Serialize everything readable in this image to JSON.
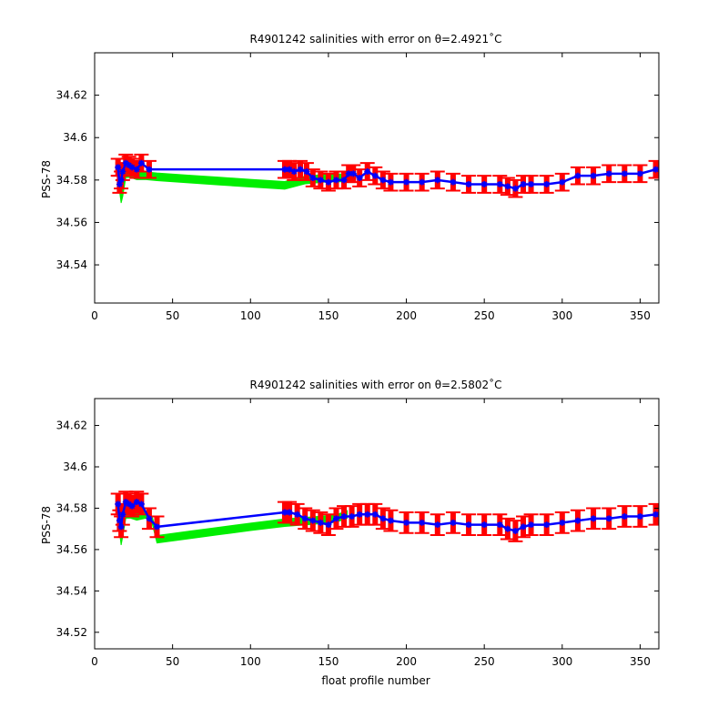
{
  "chart_data": [
    {
      "type": "scatter",
      "title": "R4901242 salinities with error on θ=2.4921˚C",
      "xlabel": "",
      "ylabel": "PSS-78",
      "xlim": [
        0,
        362
      ],
      "ylim": [
        34.522,
        34.64
      ],
      "x_ticks": [
        0,
        50,
        100,
        150,
        200,
        250,
        300,
        350
      ],
      "y_ticks": [
        34.54,
        34.56,
        34.58,
        34.6,
        34.62
      ],
      "grid": false,
      "colors": {
        "error_bars": "#ff0000",
        "mapped": "#00ee00",
        "float": "#0000ff"
      },
      "series": [
        {
          "role": "mapped",
          "x": [
            15,
            17,
            18,
            20,
            23,
            27,
            33,
            40,
            60,
            80,
            100,
            122,
            135,
            150,
            165
          ],
          "y": [
            34.582,
            34.571,
            34.574,
            34.583,
            34.583,
            34.582,
            34.582,
            34.5815,
            34.5805,
            34.5795,
            34.5785,
            34.5775,
            34.58,
            34.581,
            34.581
          ],
          "band": 0.0018
        },
        {
          "role": "float",
          "x": [
            15,
            16,
            17,
            18,
            20,
            22,
            24,
            27,
            30,
            35,
            122,
            125,
            128,
            132,
            136,
            140,
            145,
            150,
            155,
            160,
            163,
            166,
            170,
            175,
            180,
            185,
            190,
            200,
            210,
            220,
            230,
            240,
            250,
            260,
            265,
            270,
            275,
            280,
            290,
            300,
            310,
            320,
            330,
            340,
            350,
            360
          ],
          "y": [
            34.586,
            34.578,
            34.58,
            34.584,
            34.588,
            34.587,
            34.586,
            34.585,
            34.588,
            34.585,
            34.585,
            34.585,
            34.584,
            34.585,
            34.584,
            34.581,
            34.58,
            34.579,
            34.58,
            34.58,
            34.583,
            34.583,
            34.581,
            34.584,
            34.582,
            34.58,
            34.579,
            34.579,
            34.579,
            34.58,
            34.579,
            34.578,
            34.578,
            34.578,
            34.577,
            34.576,
            34.578,
            34.578,
            34.578,
            34.579,
            34.582,
            34.582,
            34.583,
            34.583,
            34.583,
            34.585
          ],
          "error": 0.004
        }
      ]
    },
    {
      "type": "scatter",
      "title": "R4901242 salinities with error on θ=2.5802˚C",
      "xlabel": "float profile number",
      "ylabel": "PSS-78",
      "xlim": [
        0,
        362
      ],
      "ylim": [
        34.512,
        34.633
      ],
      "x_ticks": [
        0,
        50,
        100,
        150,
        200,
        250,
        300,
        350
      ],
      "y_ticks": [
        34.52,
        34.54,
        34.56,
        34.58,
        34.6,
        34.62
      ],
      "grid": false,
      "colors": {
        "error_bars": "#ff0000",
        "mapped": "#00ee00",
        "float": "#0000ff"
      },
      "series": [
        {
          "role": "mapped",
          "x": [
            15,
            17,
            18,
            20,
            23,
            27,
            33,
            37,
            40,
            60,
            80,
            100,
            122,
            140,
            155,
            162
          ],
          "y": [
            34.576,
            34.564,
            34.568,
            34.577,
            34.577,
            34.576,
            34.577,
            34.574,
            34.565,
            34.567,
            34.569,
            34.571,
            34.573,
            34.574,
            34.575,
            34.577
          ],
          "band": 0.0018
        },
        {
          "role": "float",
          "x": [
            15,
            16,
            17,
            18,
            20,
            22,
            24,
            27,
            30,
            35,
            40,
            122,
            125,
            130,
            135,
            140,
            145,
            150,
            155,
            160,
            165,
            170,
            175,
            180,
            185,
            190,
            200,
            210,
            220,
            230,
            240,
            250,
            260,
            265,
            270,
            275,
            280,
            290,
            300,
            310,
            320,
            330,
            340,
            350,
            360
          ],
          "y": [
            34.582,
            34.574,
            34.571,
            34.577,
            34.583,
            34.582,
            34.581,
            34.583,
            34.582,
            34.575,
            34.571,
            34.578,
            34.578,
            34.577,
            34.575,
            34.574,
            34.573,
            34.572,
            34.575,
            34.576,
            34.576,
            34.577,
            34.577,
            34.577,
            34.575,
            34.574,
            34.573,
            34.573,
            34.572,
            34.573,
            34.572,
            34.572,
            34.572,
            34.57,
            34.569,
            34.571,
            34.572,
            34.572,
            34.573,
            34.574,
            34.575,
            34.575,
            34.576,
            34.576,
            34.577
          ],
          "error": 0.005
        }
      ]
    }
  ]
}
